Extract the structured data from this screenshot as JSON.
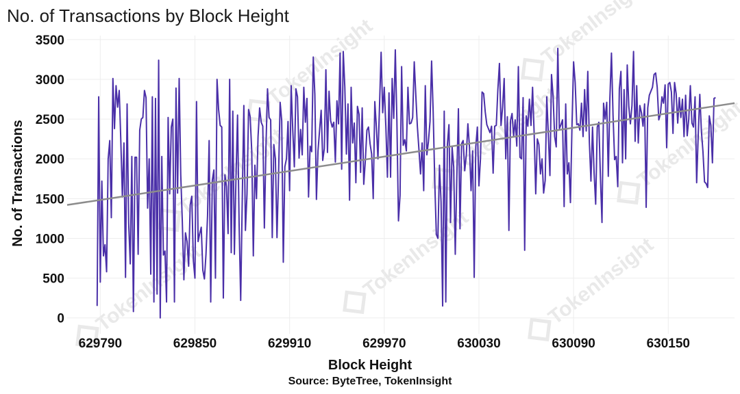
{
  "chart_data": {
    "type": "line",
    "title": "No. of Transactions by Block Height",
    "xlabel": "Block Height",
    "ylabel": "No. of Transactions",
    "source": "Source: ByteTree, TokenInsight",
    "watermark": "TokenInsight",
    "xlim": [
      629769,
      630192
    ],
    "ylim": [
      -200,
      3550
    ],
    "x_ticks": [
      629790,
      629850,
      629910,
      629970,
      630030,
      630090,
      630150
    ],
    "y_ticks": [
      0,
      500,
      1000,
      1500,
      2000,
      2500,
      3000,
      3500
    ],
    "grid": true,
    "colors": {
      "series": "#4a2fa8",
      "trend": "#8c8c8c",
      "grid": "#ededed",
      "watermark": "#e9e9e9"
    },
    "series": [
      {
        "x_start": 629788,
        "x_step": 1,
        "values": [
          150,
          2780,
          450,
          1720,
          780,
          920,
          580,
          2000,
          2230,
          1260,
          3010,
          2380,
          2920,
          2650,
          2860,
          2240,
          1520,
          2200,
          510,
          2690,
          1190,
          680,
          2030,
          80,
          2020,
          2020,
          800,
          2360,
          2500,
          2520,
          2860,
          2770,
          1380,
          2000,
          550,
          2780,
          200,
          2760,
          300,
          3240,
          0,
          2030,
          790,
          840,
          200,
          2520,
          1560,
          2400,
          2500,
          200,
          2890,
          1570,
          3010,
          1800,
          1210,
          480,
          1070,
          960,
          650,
          1420,
          1530,
          720,
          500,
          2720,
          960,
          1060,
          1140,
          600,
          490,
          800,
          1290,
          2230,
          200,
          1730,
          1860,
          500,
          3000,
          2620,
          2420,
          2400,
          250,
          1800,
          1650,
          1060,
          3000,
          820,
          2600,
          800,
          1750,
          2550,
          1180,
          220,
          1500,
          2670,
          1100,
          1560,
          2620,
          2530,
          2100,
          780,
          1920,
          1500,
          2280,
          2640,
          2460,
          2410,
          1130,
          2140,
          2880,
          2520,
          2490,
          1010,
          2180,
          2000,
          1010,
          1800,
          2710,
          2480,
          700,
          1900,
          2000,
          2470,
          1600,
          2920,
          2360,
          1900,
          2880,
          2780,
          2010,
          2370,
          2050,
          2900,
          2460,
          2760,
          1520,
          2160,
          2090,
          3280,
          2810,
          1490,
          2100,
          2360,
          2610,
          1980,
          2130,
          3120,
          2080,
          2850,
          2480,
          2400,
          2460,
          1960,
          2730,
          2440,
          3330,
          1870,
          3350,
          2900,
          2060,
          2690,
          1480,
          2900,
          2200,
          2450,
          1700,
          2660,
          2560,
          1830,
          2640,
          1680,
          1980,
          2360,
          2400,
          2190,
          2060,
          1500,
          2720,
          2400,
          2000,
          2670,
          3340,
          2580,
          2900,
          2410,
          1770,
          2830,
          1770,
          3010,
          2510,
          3370,
          2480,
          1220,
          1540,
          3160,
          2170,
          2240,
          2100,
          2900,
          2440,
          2450,
          2520,
          3220,
          2800,
          2400,
          2110,
          1810,
          2200,
          1600,
          2920,
          2050,
          2220,
          2470,
          3230,
          2590,
          1710,
          1050,
          1000,
          1920,
          1460,
          150,
          2600,
          200,
          2180,
          2430,
          1200,
          2150,
          1900,
          800,
          1780,
          2630,
          1120,
          2190,
          2230,
          1850,
          2050,
          2440,
          2150,
          1600,
          2100,
          510,
          2150,
          2400,
          1660,
          2010,
          2840,
          2820,
          2590,
          2430,
          2380,
          2330,
          2410,
          1820,
          2410,
          2420,
          2870,
          3200,
          2420,
          2650,
          3010,
          2000,
          2530,
          1100,
          2480,
          2570,
          2280,
          2490,
          2160,
          3160,
          2020,
          2000,
          2770,
          850,
          2540,
          2410,
          2750,
          2420,
          2900,
          2320,
          1560,
          2250,
          2180,
          1810,
          2000,
          1570,
          1730,
          2780,
          2300,
          1790,
          3060,
          2790,
          2280,
          2150,
          3390,
          2380,
          2430,
          2490,
          1400,
          2690,
          1810,
          1950,
          1450,
          2430,
          3220,
          2960,
          2430,
          2440,
          2360,
          2700,
          2280,
          2870,
          2350,
          3100,
          2210,
          1720,
          2400,
          1820,
          1430,
          2400,
          2460,
          1770,
          1200,
          2700,
          2500,
          2710,
          1780,
          2760,
          3330,
          2550,
          1990,
          2030,
          1650,
          2880,
          3100,
          1950,
          2870,
          2000,
          3180,
          2660,
          2440,
          2670,
          3350,
          2220,
          2920,
          2200,
          2670,
          2580,
          2410,
          2690,
          1390,
          2640,
          2800,
          2850,
          2900,
          3060,
          3080,
          2900,
          2490,
          2560,
          2780,
          2700,
          2930,
          2140,
          2940,
          2960,
          2840,
          2320,
          2960,
          2820,
          2450,
          2770,
          2520,
          2750,
          2280,
          2800,
          2290,
          2500,
          2920,
          2450,
          2400,
          2780,
          1700,
          2300,
          2810,
          2350,
          2090,
          1710,
          1690,
          1640,
          2540,
          2420,
          1950,
          2760,
          2770
        ]
      }
    ],
    "trend_line": {
      "x": [
        629769,
        630192
      ],
      "y": [
        1420,
        2700
      ]
    }
  }
}
